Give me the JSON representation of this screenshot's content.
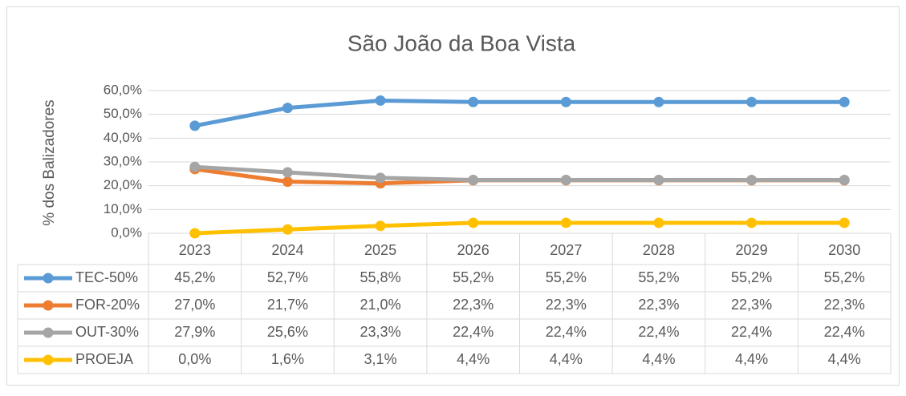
{
  "chart_data": {
    "type": "line",
    "title": "São João da Boa Vista",
    "y_label": "% dos Balizadores",
    "categories": [
      "2023",
      "2024",
      "2025",
      "2026",
      "2027",
      "2028",
      "2029",
      "2030"
    ],
    "series": [
      {
        "name": "TEC-50%",
        "color": "#5b9bd5",
        "values": [
          45.2,
          52.7,
          55.8,
          55.2,
          55.2,
          55.2,
          55.2,
          55.2
        ],
        "value_labels": [
          "45,2%",
          "52,7%",
          "55,8%",
          "55,2%",
          "55,2%",
          "55,2%",
          "55,2%",
          "55,2%"
        ]
      },
      {
        "name": "FOR-20%",
        "color": "#ed7d31",
        "values": [
          27.0,
          21.7,
          21.0,
          22.3,
          22.3,
          22.3,
          22.3,
          22.3
        ],
        "value_labels": [
          "27,0%",
          "21,7%",
          "21,0%",
          "22,3%",
          "22,3%",
          "22,3%",
          "22,3%",
          "22,3%"
        ]
      },
      {
        "name": "OUT-30%",
        "color": "#a5a5a5",
        "values": [
          27.9,
          25.6,
          23.3,
          22.4,
          22.4,
          22.4,
          22.4,
          22.4
        ],
        "value_labels": [
          "27,9%",
          "25,6%",
          "23,3%",
          "22,4%",
          "22,4%",
          "22,4%",
          "22,4%",
          "22,4%"
        ]
      },
      {
        "name": "PROEJA",
        "color": "#ffc000",
        "values": [
          0.0,
          1.6,
          3.1,
          4.4,
          4.4,
          4.4,
          4.4,
          4.4
        ],
        "value_labels": [
          "0,0%",
          "1,6%",
          "3,1%",
          "4,4%",
          "4,4%",
          "4,4%",
          "4,4%",
          "4,4%"
        ]
      }
    ],
    "ylim": [
      0,
      60
    ],
    "yticks": [
      {
        "value": 0,
        "label": "0,0%"
      },
      {
        "value": 10,
        "label": "10,0%"
      },
      {
        "value": 20,
        "label": "20,0%"
      },
      {
        "value": 30,
        "label": "30,0%"
      },
      {
        "value": 40,
        "label": "40,0%"
      },
      {
        "value": 50,
        "label": "50,0%"
      },
      {
        "value": 60,
        "label": "60,0%"
      }
    ],
    "grid": true
  }
}
